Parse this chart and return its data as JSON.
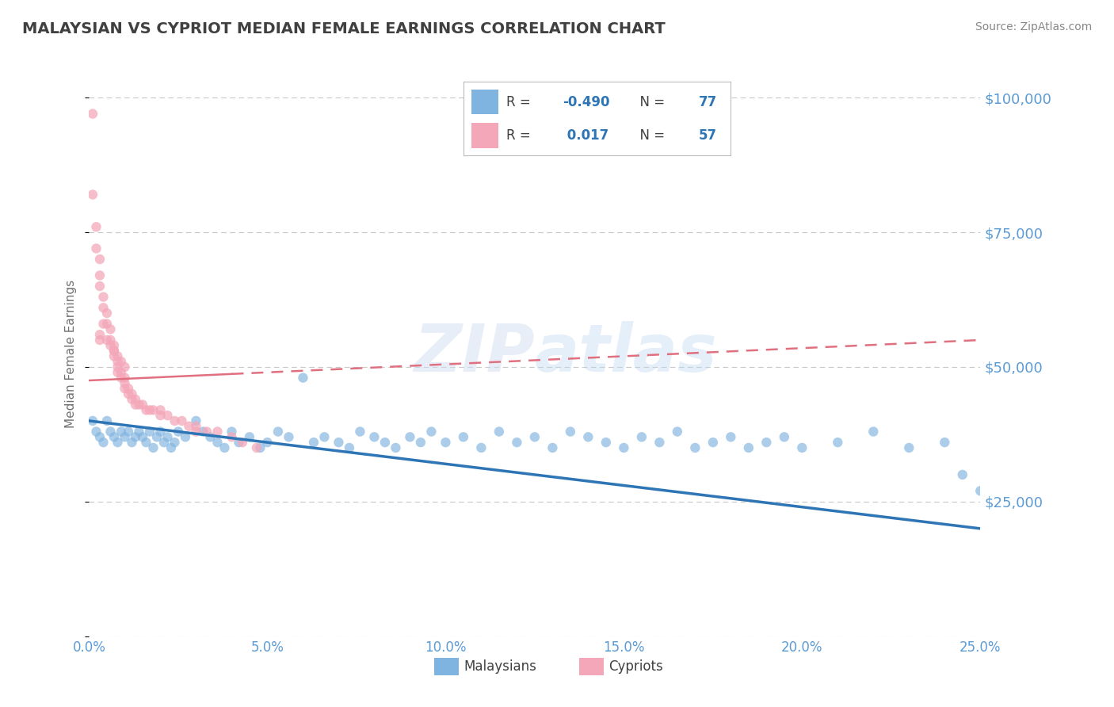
{
  "title": "MALAYSIAN VS CYPRIOT MEDIAN FEMALE EARNINGS CORRELATION CHART",
  "source": "Source: ZipAtlas.com",
  "ylabel": "Median Female Earnings",
  "xlim": [
    0.0,
    0.25
  ],
  "ylim": [
    0,
    105000
  ],
  "yticks": [
    0,
    25000,
    50000,
    75000,
    100000
  ],
  "ytick_labels": [
    "",
    "$25,000",
    "$50,000",
    "$75,000",
    "$100,000"
  ],
  "xticks": [
    0.0,
    0.05,
    0.1,
    0.15,
    0.2,
    0.25
  ],
  "xtick_labels": [
    "0.0%",
    "5.0%",
    "10.0%",
    "15.0%",
    "20.0%",
    "25.0%"
  ],
  "malaysian_R": -0.49,
  "malaysian_N": 77,
  "cypriot_R": 0.017,
  "cypriot_N": 57,
  "blue_color": "#7fb3e0",
  "pink_color": "#f4a7b9",
  "blue_line_color": "#2e75b6",
  "pink_line_color": "#e07080",
  "title_color": "#404040",
  "axis_label_color": "#5b9bd5",
  "legend_R_color": "#2e75b6",
  "grid_color": "#c8c8c8",
  "background_color": "#ffffff",
  "malaysian_x": [
    0.001,
    0.002,
    0.003,
    0.004,
    0.005,
    0.006,
    0.007,
    0.008,
    0.009,
    0.01,
    0.011,
    0.012,
    0.013,
    0.014,
    0.015,
    0.016,
    0.017,
    0.018,
    0.019,
    0.02,
    0.021,
    0.022,
    0.023,
    0.024,
    0.025,
    0.027,
    0.03,
    0.032,
    0.034,
    0.036,
    0.038,
    0.04,
    0.042,
    0.045,
    0.048,
    0.05,
    0.053,
    0.056,
    0.06,
    0.063,
    0.066,
    0.07,
    0.073,
    0.076,
    0.08,
    0.083,
    0.086,
    0.09,
    0.093,
    0.096,
    0.1,
    0.105,
    0.11,
    0.115,
    0.12,
    0.125,
    0.13,
    0.135,
    0.14,
    0.145,
    0.15,
    0.155,
    0.16,
    0.165,
    0.17,
    0.175,
    0.18,
    0.185,
    0.19,
    0.195,
    0.2,
    0.21,
    0.22,
    0.23,
    0.24,
    0.245,
    0.25
  ],
  "malaysian_y": [
    40000,
    38000,
    37000,
    36000,
    40000,
    38000,
    37000,
    36000,
    38000,
    37000,
    38000,
    36000,
    37000,
    38000,
    37000,
    36000,
    38000,
    35000,
    37000,
    38000,
    36000,
    37000,
    35000,
    36000,
    38000,
    37000,
    40000,
    38000,
    37000,
    36000,
    35000,
    38000,
    36000,
    37000,
    35000,
    36000,
    38000,
    37000,
    48000,
    36000,
    37000,
    36000,
    35000,
    38000,
    37000,
    36000,
    35000,
    37000,
    36000,
    38000,
    36000,
    37000,
    35000,
    38000,
    36000,
    37000,
    35000,
    38000,
    37000,
    36000,
    35000,
    37000,
    36000,
    38000,
    35000,
    36000,
    37000,
    35000,
    36000,
    37000,
    35000,
    36000,
    38000,
    35000,
    36000,
    30000,
    27000
  ],
  "cypriot_x": [
    0.001,
    0.001,
    0.002,
    0.002,
    0.003,
    0.003,
    0.003,
    0.004,
    0.004,
    0.005,
    0.005,
    0.006,
    0.006,
    0.007,
    0.007,
    0.007,
    0.008,
    0.008,
    0.008,
    0.009,
    0.009,
    0.01,
    0.01,
    0.01,
    0.011,
    0.011,
    0.012,
    0.012,
    0.013,
    0.013,
    0.014,
    0.015,
    0.016,
    0.017,
    0.018,
    0.02,
    0.022,
    0.024,
    0.026,
    0.028,
    0.03,
    0.033,
    0.036,
    0.04,
    0.043,
    0.047,
    0.003,
    0.003,
    0.004,
    0.005,
    0.006,
    0.007,
    0.008,
    0.009,
    0.01,
    0.02,
    0.03
  ],
  "cypriot_y": [
    97000,
    82000,
    76000,
    72000,
    70000,
    67000,
    65000,
    63000,
    61000,
    60000,
    58000,
    57000,
    55000,
    54000,
    53000,
    52000,
    51000,
    50000,
    49000,
    49000,
    48000,
    48000,
    47000,
    46000,
    46000,
    45000,
    45000,
    44000,
    44000,
    43000,
    43000,
    43000,
    42000,
    42000,
    42000,
    41000,
    41000,
    40000,
    40000,
    39000,
    39000,
    38000,
    38000,
    37000,
    36000,
    35000,
    55000,
    56000,
    58000,
    55000,
    54000,
    53000,
    52000,
    51000,
    50000,
    42000,
    38000
  ],
  "cypriot_line_x0": 0.0,
  "cypriot_line_y0": 47500,
  "cypriot_line_x1": 0.25,
  "cypriot_line_y1": 55000,
  "malaysian_line_x0": 0.0,
  "malaysian_line_y0": 40000,
  "malaysian_line_x1": 0.25,
  "malaysian_line_y1": 20000
}
